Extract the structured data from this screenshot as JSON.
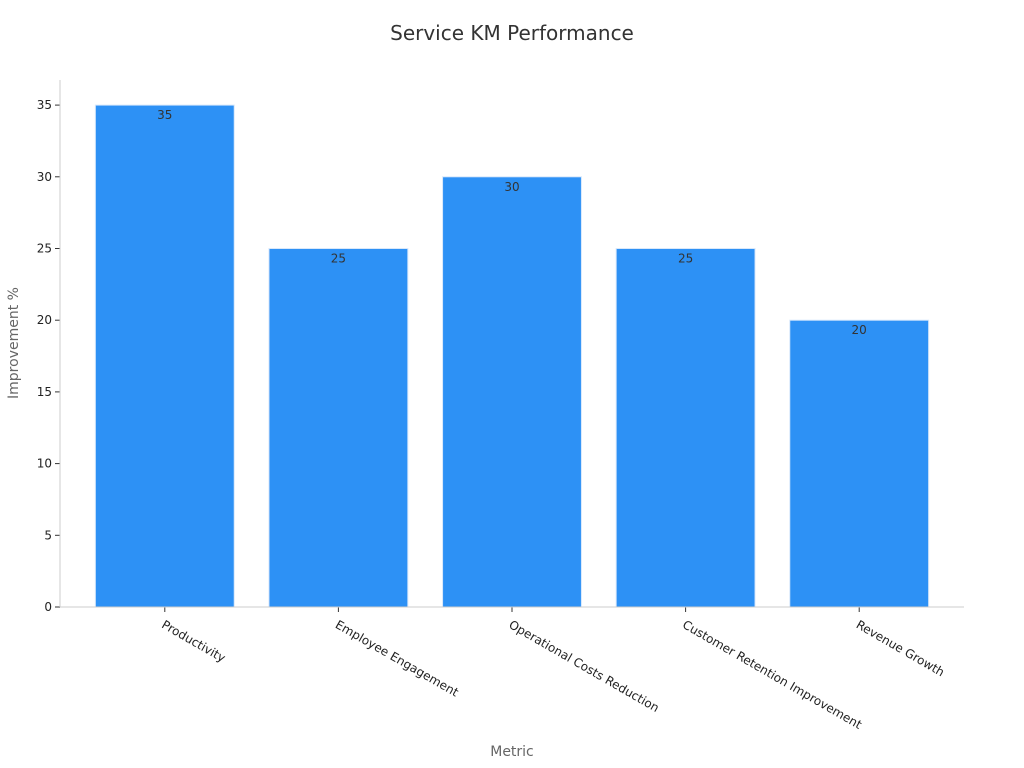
{
  "chart_data": {
    "type": "bar",
    "title": "Service KM Performance",
    "xlabel": "Metric",
    "ylabel": "Improvement %",
    "categories": [
      "Productivity",
      "Employee Engagement",
      "Operational Costs Reduction",
      "Customer Retention Improvement",
      "Revenue Growth"
    ],
    "values": [
      35,
      25,
      30,
      25,
      20
    ],
    "yticks": [
      0,
      5,
      10,
      15,
      20,
      25,
      30,
      35
    ],
    "ylim": [
      0,
      36.75
    ],
    "grid": false,
    "legend": "none",
    "bar_color": "#2d91f5"
  }
}
